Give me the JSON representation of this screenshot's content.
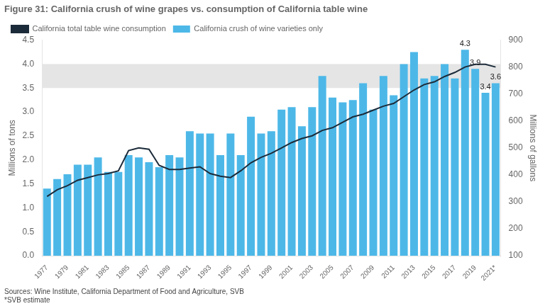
{
  "chart_data": {
    "type": "bar",
    "title": "Figure 31: California crush of wine grapes vs. consumption of California table wine",
    "categories": [
      "1977",
      null,
      "1979",
      null,
      "1981",
      null,
      "1983",
      null,
      "1985",
      null,
      "1987",
      null,
      "1989",
      null,
      "1991",
      null,
      "1993",
      null,
      "1995",
      null,
      "1997",
      null,
      "1999",
      null,
      "2001",
      null,
      "2003",
      null,
      "2005",
      null,
      "2007",
      null,
      "2009",
      null,
      "2011",
      null,
      "2013",
      null,
      "2015",
      null,
      "2017",
      null,
      "2019",
      null,
      "2021*"
    ],
    "series": [
      {
        "name": "California crush of wine varieties only",
        "type": "bar",
        "color": "#4db8e8",
        "values": [
          1.4,
          1.6,
          1.7,
          1.9,
          1.9,
          2.05,
          1.75,
          1.75,
          2.1,
          2.05,
          1.95,
          1.85,
          2.1,
          2.05,
          2.6,
          2.55,
          2.55,
          2.1,
          2.55,
          2.1,
          2.9,
          2.55,
          2.6,
          3.05,
          3.1,
          2.7,
          3.1,
          3.75,
          3.3,
          3.2,
          3.25,
          3.6,
          3.05,
          3.75,
          3.35,
          4.0,
          4.25,
          3.7,
          3.75,
          4.0,
          3.7,
          4.3,
          3.9,
          3.4,
          3.6
        ],
        "value_labels": [
          null,
          null,
          null,
          null,
          null,
          null,
          null,
          null,
          null,
          null,
          null,
          null,
          null,
          null,
          null,
          null,
          null,
          null,
          null,
          null,
          null,
          null,
          null,
          null,
          null,
          null,
          null,
          null,
          null,
          null,
          null,
          null,
          null,
          null,
          null,
          null,
          null,
          null,
          null,
          null,
          null,
          "4.3",
          "3.9",
          "3.4",
          "3.6"
        ]
      },
      {
        "name": "California total table wine consumption",
        "type": "line",
        "color": "#1c2b3a",
        "axis": "y2",
        "values": [
          320,
          345,
          360,
          380,
          390,
          400,
          405,
          415,
          490,
          500,
          495,
          435,
          420,
          420,
          425,
          430,
          405,
          395,
          390,
          415,
          445,
          465,
          480,
          500,
          520,
          535,
          545,
          565,
          575,
          595,
          615,
          625,
          640,
          655,
          665,
          690,
          715,
          735,
          745,
          765,
          780,
          800,
          810,
          810,
          800
        ]
      }
    ],
    "y_label": "Millions of tons",
    "y2_label": "Millions of gallons",
    "ylim": [
      0.0,
      4.5
    ],
    "yticks": [
      {
        "value": 0.0,
        "label": "0.0"
      },
      0.5,
      {
        "value": 1.0,
        "label": "1.0"
      },
      1.5,
      {
        "value": 2.0,
        "label": "2.0"
      },
      2.5,
      {
        "value": 3.0,
        "label": "3.0"
      },
      3.5,
      {
        "value": 4.0,
        "label": "4.0"
      },
      4.5
    ],
    "y2lim": [
      100,
      900
    ],
    "y2ticks": [
      100,
      200,
      300,
      400,
      500,
      600,
      700,
      800,
      900
    ],
    "band": {
      "y1": 3.5,
      "y2": 4.0,
      "color": "#e5e5e5"
    },
    "notes": [
      "Sources: Wine Institute, California Department of Food and Agriculture, SVB",
      "*SVB estimate"
    ],
    "legend": "upper left",
    "grid": false
  }
}
